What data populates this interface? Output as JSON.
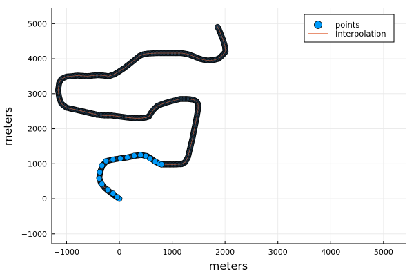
{
  "chart_data": {
    "type": "scatter",
    "xlabel": "meters",
    "ylabel": "meters",
    "xlim": [
      -1280,
      5420
    ],
    "ylim": [
      -1280,
      5440
    ],
    "xticks": [
      -1000,
      0,
      1000,
      2000,
      3000,
      4000,
      5000
    ],
    "yticks": [
      -1000,
      0,
      1000,
      2000,
      3000,
      4000,
      5000
    ],
    "xtick_labels": [
      "−1000",
      "0",
      "1000",
      "2000",
      "3000",
      "4000",
      "5000"
    ],
    "ytick_labels": [
      "−1000",
      "0",
      "1000",
      "2000",
      "3000",
      "4000",
      "5000"
    ],
    "grid": true,
    "legend_position": "top-right",
    "series": [
      {
        "name": "points",
        "kind": "markers",
        "color": "#009af9",
        "stroke": "#000000",
        "x": [
          0,
          -40,
          -120,
          -220,
          -330,
          -380,
          -370,
          -330,
          -250,
          -120,
          20,
          150,
          280,
          400,
          500,
          580,
          680,
          760,
          800
        ],
        "y": [
          0,
          50,
          150,
          260,
          420,
          580,
          760,
          950,
          1080,
          1120,
          1150,
          1180,
          1230,
          1250,
          1220,
          1150,
          1060,
          1000,
          980
        ]
      },
      {
        "name": "Interpolation",
        "kind": "line",
        "color": "#e26f46",
        "x": [
          0,
          -70,
          -170,
          -270,
          -350,
          -380,
          -360,
          -320,
          -240,
          -120,
          0,
          150,
          300,
          420,
          520,
          600,
          680,
          760,
          800,
          900,
          1050,
          1180,
          1250,
          1300,
          1340,
          1380,
          1420,
          1460,
          1490,
          1490,
          1460,
          1400,
          1300,
          1150,
          1020,
          900,
          800,
          720,
          650,
          600,
          560,
          500,
          400,
          300,
          150,
          0,
          -150,
          -280,
          -420,
          -560,
          -700,
          -850,
          -1000,
          -1100,
          -1140,
          -1160,
          -1140,
          -1100,
          -1000,
          -900,
          -800,
          -700,
          -600,
          -500,
          -400,
          -300,
          -200,
          -100,
          0,
          100,
          200,
          300,
          380,
          460,
          560,
          700,
          860,
          1020,
          1180,
          1300,
          1420,
          1540,
          1660,
          1780,
          1880,
          1950,
          2010,
          2000,
          1960,
          1920,
          1880,
          1850
        ],
        "y": [
          0,
          70,
          180,
          300,
          450,
          600,
          780,
          950,
          1080,
          1120,
          1150,
          1180,
          1230,
          1250,
          1220,
          1150,
          1060,
          1000,
          980,
          980,
          980,
          990,
          1050,
          1200,
          1450,
          1700,
          2000,
          2300,
          2550,
          2700,
          2780,
          2830,
          2850,
          2850,
          2800,
          2750,
          2700,
          2650,
          2550,
          2450,
          2350,
          2320,
          2300,
          2300,
          2320,
          2350,
          2380,
          2380,
          2400,
          2450,
          2500,
          2550,
          2600,
          2720,
          2900,
          3100,
          3300,
          3420,
          3490,
          3500,
          3520,
          3510,
          3500,
          3520,
          3530,
          3520,
          3500,
          3550,
          3640,
          3740,
          3860,
          3980,
          4080,
          4130,
          4150,
          4160,
          4160,
          4160,
          4160,
          4130,
          4060,
          3990,
          3950,
          3960,
          4000,
          4100,
          4200,
          4350,
          4550,
          4700,
          4850,
          4930
        ]
      }
    ]
  }
}
